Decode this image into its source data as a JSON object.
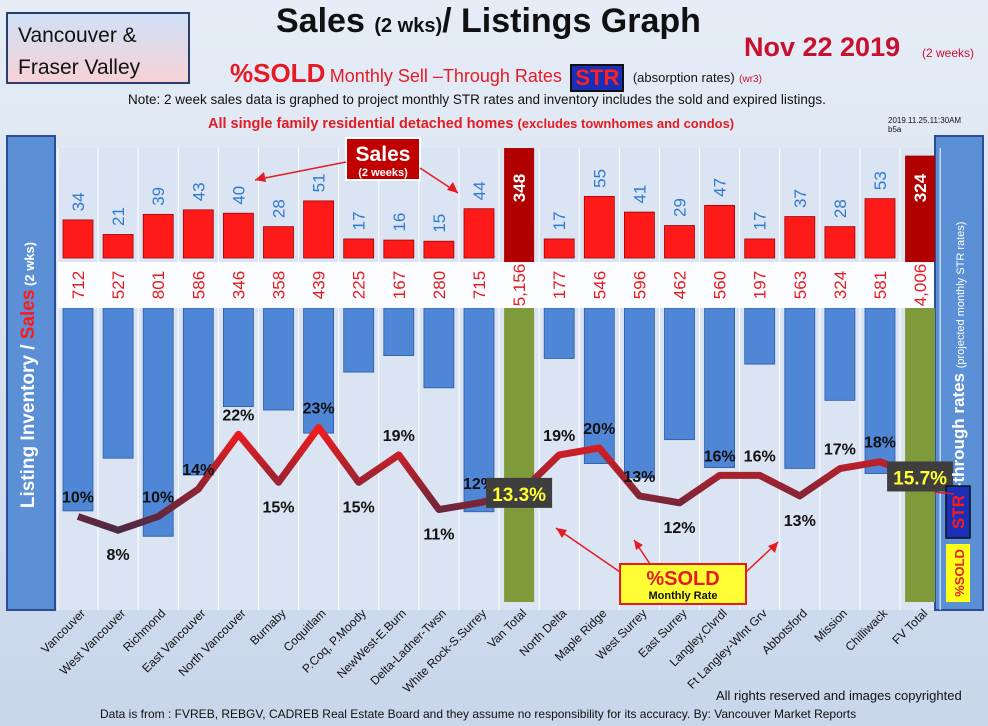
{
  "region": {
    "line1": "Vancouver &",
    "line2": "Fraser Valley"
  },
  "header": {
    "title_main": "Sales",
    "title_sub": "(2 wks)",
    "title_rest": "/ Listings Graph",
    "date": "Nov 22 2019",
    "date_sub": "(2 weeks)",
    "sold_pct": "%SOLD",
    "monthly_sell_through": "Monthly Sell –Through Rates",
    "str_badge": "STR",
    "absorption": "(absorption rates)",
    "absorption_code": "(wr3)",
    "note": "Note: 2 week sales data is graphed to project monthly STR rates and inventory includes the sold and expired listings.",
    "scope_bold": "All single family residential detached homes",
    "scope_rest": "(excludes townhomes and condos)",
    "stamp_line1": "2019.11.25.11:30AM",
    "stamp_line2": "b5a"
  },
  "footer": {
    "rights": "All rights reserved and  images copyrighted",
    "source": "Data is from : FVREB, REBGV, CADREB Real Estate Board and they assume no responsibility for its accuracy. By: Vancouver Market Reports"
  },
  "chart_data": {
    "type": "bar",
    "categories": [
      "Vancouver",
      "West Vancouver",
      "Richmond",
      "East Vancouver",
      "North Vancouver",
      "Burnaby",
      "Coquitlam",
      "P.Coq, P.Moody",
      "NewWest-E.Burn",
      "Delta-Ladner-Twsn",
      "White Rock-S.Surrey",
      "Van Total",
      "North Delta",
      "Maple Ridge",
      "West Surrey",
      "East Surrey",
      "Langley,Clvrdl",
      "Ft Langley-Wlnt Grv",
      "Abbotsford",
      "Mission",
      "Chilliwack",
      "FV Total"
    ],
    "series": [
      {
        "name": "Sales",
        "values": [
          34,
          21,
          39,
          43,
          40,
          28,
          51,
          17,
          16,
          15,
          44,
          348,
          17,
          55,
          41,
          29,
          47,
          17,
          37,
          28,
          53,
          324
        ]
      },
      {
        "name": "Listing Inventory",
        "values": [
          712,
          527,
          801,
          586,
          346,
          358,
          439,
          225,
          167,
          280,
          715,
          5156,
          177,
          546,
          596,
          462,
          560,
          197,
          563,
          324,
          581,
          4006
        ]
      },
      {
        "name": "%SOLD",
        "values": [
          10,
          8,
          10,
          14,
          22,
          15,
          23,
          15,
          19,
          11,
          12,
          13.3,
          19,
          20,
          13,
          12,
          16,
          16,
          13,
          17,
          18,
          15.7
        ]
      }
    ],
    "inventory_labels": [
      "712",
      "527",
      "801",
      "586",
      "346",
      "358",
      "439",
      "225",
      "167",
      "280",
      "715",
      "5,156",
      "177",
      "546",
      "596",
      "462",
      "560",
      "197",
      "563",
      "324",
      "581",
      "4,006"
    ],
    "pct_labels": [
      "10%",
      "8%",
      "10%",
      "14%",
      "22%",
      "15%",
      "23%",
      "15%",
      "19%",
      "11%",
      "12%",
      "13.3%",
      "19%",
      "20%",
      "13%",
      "12%",
      "16%",
      "16%",
      "13%",
      "17%",
      "18%",
      "15.7%"
    ],
    "total_indices": [
      11,
      21
    ],
    "ylabel_left_a": "Listing Inventory / ",
    "ylabel_left_b": "Sales",
    "ylabel_left_c": " (2 wks)",
    "ylabel_right_a": "Sell-through rates",
    "ylabel_right_b": "(projected monthly STR rates)",
    "ylabel_right_str": "STR",
    "ylabel_right_sold": "%SOLD",
    "callout_sales": "Sales",
    "callout_sales_sub": "(2 weeks)",
    "callout_sold": "%SOLD",
    "callout_sold_sub": "Monthly Rate",
    "colors": {
      "sales": "#ff1a1a",
      "inventory": "#4f86d6",
      "total": "#7f9a3a",
      "total_sales": "#b00000",
      "line_low": "#1d2e4d",
      "line_high": "#ff1a1a"
    }
  }
}
